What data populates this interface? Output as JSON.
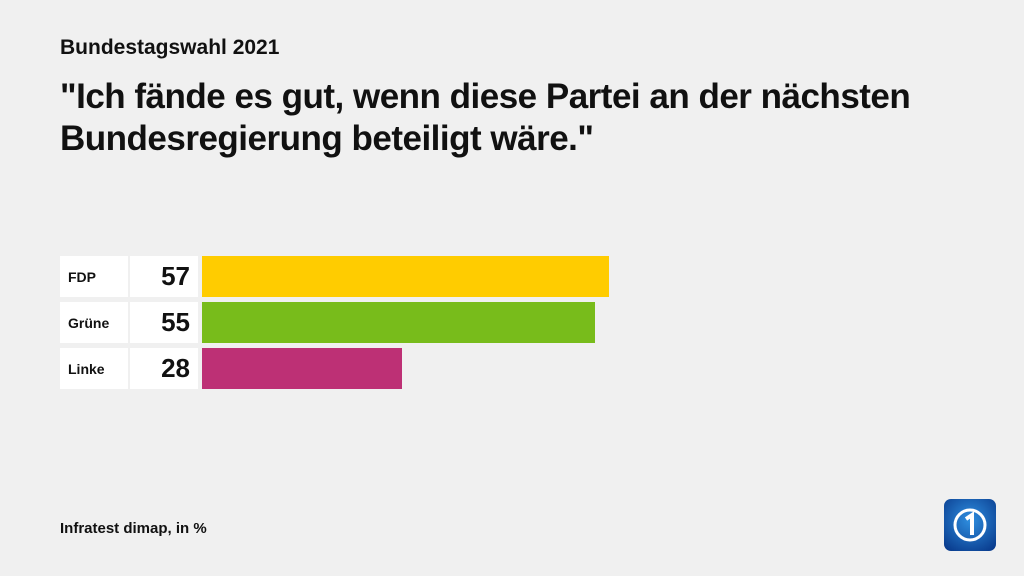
{
  "chart_data": {
    "type": "bar",
    "orientation": "horizontal",
    "subtitle": "Bundestagswahl 2021",
    "title": "\"Ich fände es gut, wenn diese Partei an der nächsten Bundesregierung beteiligt wäre.\"",
    "categories": [
      "FDP",
      "Grüne",
      "Linke"
    ],
    "values": [
      57,
      55,
      28
    ],
    "colors": [
      "#ffcc00",
      "#78bc1b",
      "#bd3075"
    ],
    "source": "Infratest dimap, in %"
  }
}
